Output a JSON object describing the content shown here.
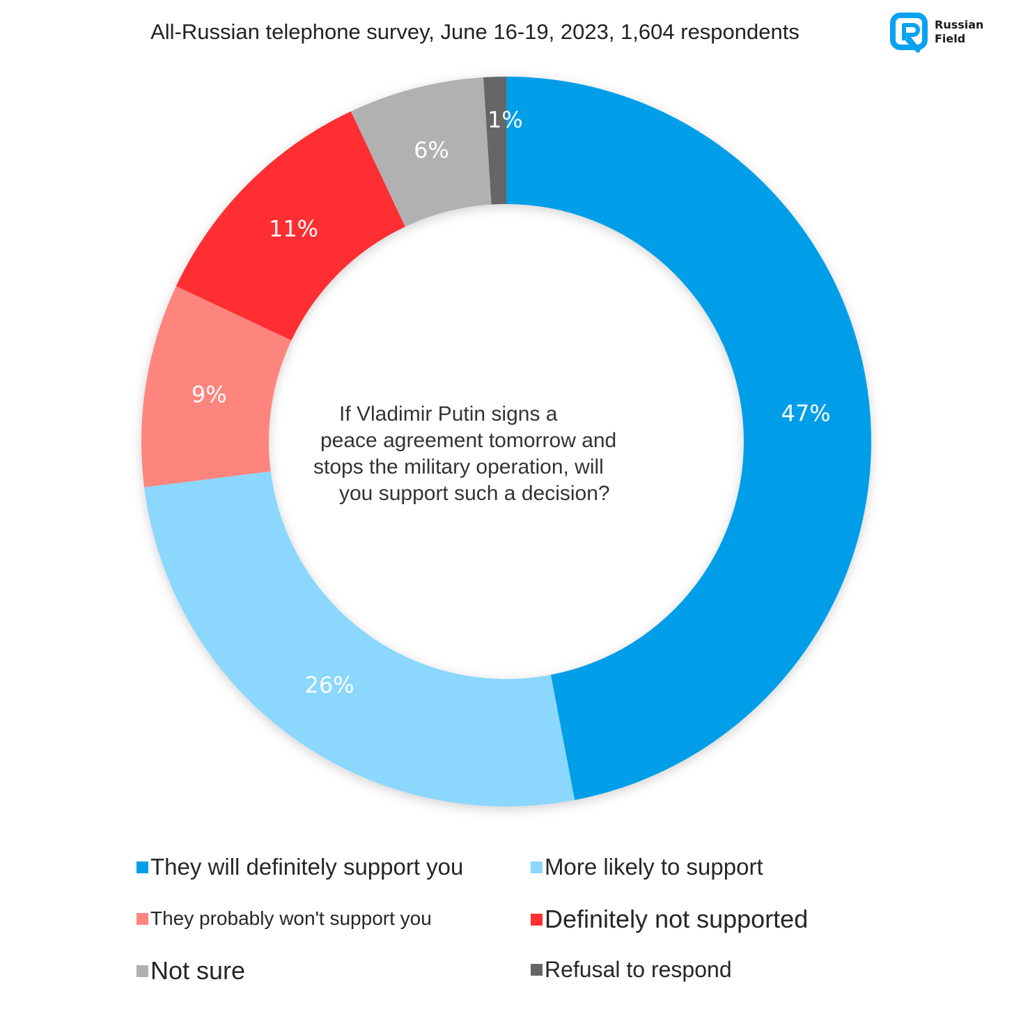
{
  "header": {
    "title": "All-Russian telephone survey, June 16-19, 2023, 1,604 respondents"
  },
  "logo": {
    "line1": "Russian",
    "line2": "Field",
    "color": "#0aa2f0"
  },
  "center_text": {
    "lines": [
      "If Vladimir Putin signs a",
      "peace agreement tomorrow and",
      "stops the military operation, will",
      "you support such a decision?"
    ]
  },
  "chart_data": {
    "type": "pie",
    "donut": true,
    "title": "",
    "slices": [
      {
        "label": "They will definitely support you",
        "value": 47,
        "display": "47%",
        "color": "#039ee8"
      },
      {
        "label": "More likely to support",
        "value": 26,
        "display": "26%",
        "color": "#8bd7fd"
      },
      {
        "label": "They probably won't support you",
        "value": 9,
        "display": "9%",
        "color": "#fd857d"
      },
      {
        "label": "Definitely not supported",
        "value": 11,
        "display": "11%",
        "color": "#fe2f31"
      },
      {
        "label": "Not sure",
        "value": 6,
        "display": "6%",
        "color": "#b1b1b1"
      },
      {
        "label": "Refusal to respond",
        "value": 1,
        "display": "1%",
        "color": "#666666"
      }
    ],
    "start_angle": "12 o'clock",
    "direction": "clockwise",
    "legend_position": "bottom"
  },
  "legend": {
    "items": [
      {
        "label": "They will definitely support you",
        "color": "#039ee8"
      },
      {
        "label": "More likely to support",
        "color": "#8bd7fd"
      },
      {
        "label": "They probably won't support you",
        "color": "#fd857d"
      },
      {
        "label": "Definitely not supported",
        "color": "#fe2f31"
      },
      {
        "label": "Not sure",
        "color": "#b1b1b1"
      },
      {
        "label": "Refusal to respond",
        "color": "#666666"
      }
    ]
  }
}
